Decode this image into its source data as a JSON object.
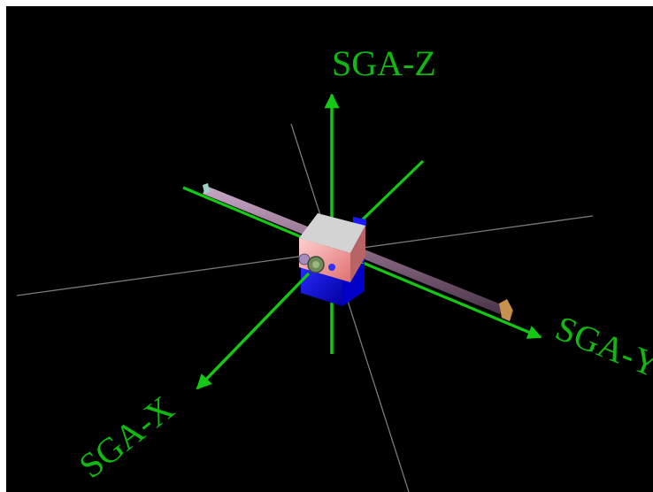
{
  "axes": {
    "z": {
      "label": "SGA-Z"
    },
    "x": {
      "label": "SGA-X"
    },
    "y": {
      "label": "SGA-Y"
    }
  },
  "colors": {
    "background": "#000000",
    "frame": "#ffffff",
    "axis_green": "#13c913",
    "label_green": "#10b810",
    "grid_line": "#7a7a7a",
    "rod": "#8a6a86",
    "cube_top": "#d3d3d3",
    "cube_front": "#ffb0b0",
    "cube_bottom": "#1a1aff",
    "end_cap": "#c8924e",
    "left_cap": "#9ed0c8"
  },
  "icons": {
    "main_body": "spacecraft-body",
    "rod": "boom-rod"
  }
}
